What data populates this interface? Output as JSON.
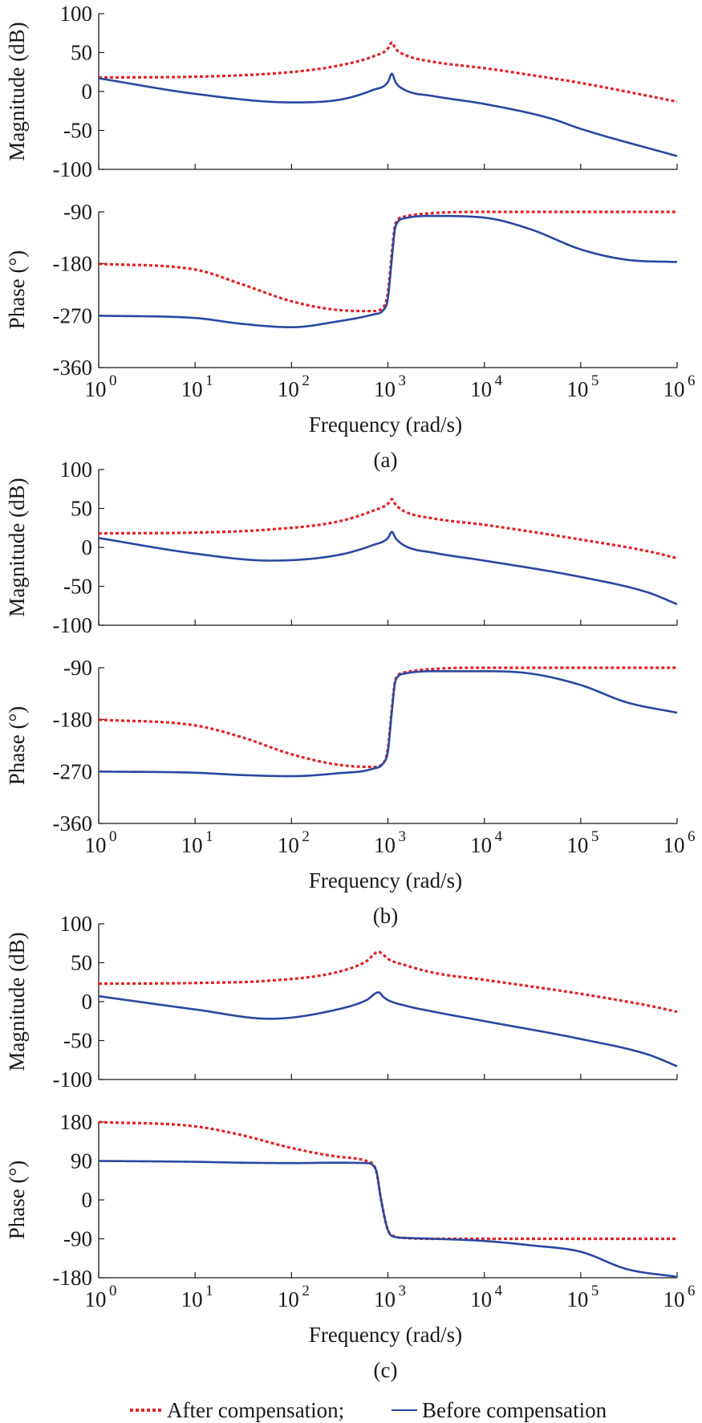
{
  "chart_data": [
    {
      "panel": "(a)",
      "caption": "(a)",
      "xlabel": "Frequency (rad/s)",
      "x_scale": "log",
      "x_ticks": [
        "10^0",
        "10^1",
        "10^2",
        "10^3",
        "10^4",
        "10^5",
        "10^6"
      ],
      "subplots": [
        {
          "type": "line",
          "ylabel": "Magnitude (dB)",
          "ylim": [
            -100,
            100
          ],
          "yticks": [
            "100",
            "50",
            "0",
            "-50",
            "-100"
          ],
          "grid": false,
          "x": [
            1,
            10,
            100,
            300,
            700,
            1000,
            1100,
            1200,
            1500,
            3000,
            10000,
            50000,
            100000,
            1000000
          ],
          "series": [
            {
              "name": "After compensation",
              "style": "dotted",
              "color": "#e0242a",
              "values": [
                18,
                19,
                25,
                33,
                45,
                55,
                63,
                55,
                47,
                38,
                30,
                17,
                11,
                -13
              ]
            },
            {
              "name": "Before compensation",
              "style": "solid",
              "color": "#2b479f",
              "values": [
                17,
                -3,
                -14,
                -11,
                2,
                12,
                23,
                12,
                2,
                -6,
                -16,
                -35,
                -48,
                -83
              ]
            }
          ]
        },
        {
          "type": "line",
          "ylabel": "Phase (°)",
          "ylim": [
            -360,
            -90
          ],
          "yticks": [
            "-90",
            "-180",
            "-270",
            "-360"
          ],
          "grid": false,
          "x": [
            1,
            10,
            30,
            100,
            300,
            700,
            900,
            1000,
            1100,
            1200,
            1500,
            3000,
            10000,
            30000,
            100000,
            300000,
            1000000
          ],
          "series": [
            {
              "name": "After compensation",
              "style": "dotted",
              "color": "#e0242a",
              "values": [
                -180,
                -190,
                -215,
                -245,
                -260,
                -262,
                -255,
                -230,
                -160,
                -110,
                -98,
                -92,
                -90,
                -90,
                -90,
                -90,
                -90
              ]
            },
            {
              "name": "Before compensation",
              "style": "solid",
              "color": "#2b479f",
              "values": [
                -270,
                -274,
                -284,
                -290,
                -280,
                -268,
                -260,
                -240,
                -170,
                -115,
                -101,
                -97,
                -100,
                -120,
                -155,
                -173,
                -177
              ]
            }
          ]
        }
      ]
    },
    {
      "panel": "(b)",
      "caption": "(b)",
      "xlabel": "Frequency (rad/s)",
      "x_scale": "log",
      "x_ticks": [
        "10^0",
        "10^1",
        "10^2",
        "10^3",
        "10^4",
        "10^5",
        "10^6"
      ],
      "subplots": [
        {
          "type": "line",
          "ylabel": "Magnitude (dB)",
          "ylim": [
            -100,
            100
          ],
          "yticks": [
            "100",
            "50",
            "0",
            "-50",
            "-100"
          ],
          "grid": false,
          "x": [
            1,
            10,
            60,
            300,
            700,
            1000,
            1100,
            1200,
            1500,
            3000,
            10000,
            100000,
            500000,
            1000000
          ],
          "series": [
            {
              "name": "After compensation",
              "style": "dotted",
              "color": "#e0242a",
              "values": [
                18,
                19,
                23,
                33,
                47,
                56,
                62,
                55,
                46,
                37,
                29,
                10,
                -5,
                -14
              ]
            },
            {
              "name": "Before compensation",
              "style": "solid",
              "color": "#2b479f",
              "values": [
                12,
                -8,
                -17,
                -10,
                3,
                12,
                20,
                12,
                2,
                -7,
                -17,
                -38,
                -58,
                -73
              ]
            }
          ]
        },
        {
          "type": "line",
          "ylabel": "Phase (°)",
          "ylim": [
            -360,
            -90
          ],
          "yticks": [
            "-90",
            "-180",
            "-270",
            "-360"
          ],
          "grid": false,
          "x": [
            1,
            10,
            30,
            100,
            300,
            700,
            900,
            1000,
            1100,
            1200,
            1500,
            3000,
            10000,
            30000,
            100000,
            300000,
            1000000
          ],
          "series": [
            {
              "name": "After compensation",
              "style": "dotted",
              "color": "#e0242a",
              "values": [
                -180,
                -190,
                -210,
                -240,
                -258,
                -262,
                -255,
                -230,
                -160,
                -110,
                -98,
                -92,
                -90,
                -90,
                -90,
                -90,
                -90
              ]
            },
            {
              "name": "Before compensation",
              "style": "solid",
              "color": "#2b479f",
              "values": [
                -270,
                -272,
                -276,
                -278,
                -273,
                -265,
                -255,
                -235,
                -165,
                -112,
                -100,
                -96,
                -96,
                -100,
                -120,
                -150,
                -168
              ]
            }
          ]
        }
      ]
    },
    {
      "panel": "(c)",
      "caption": "(c)",
      "xlabel": "Frequency (rad/s)",
      "x_scale": "log",
      "x_ticks": [
        "10^0",
        "10^1",
        "10^2",
        "10^3",
        "10^4",
        "10^5",
        "10^6"
      ],
      "subplots": [
        {
          "type": "line",
          "ylabel": "Magnitude (dB)",
          "ylim": [
            -100,
            100
          ],
          "yticks": [
            "100",
            "50",
            "0",
            "-50",
            "-100"
          ],
          "grid": false,
          "x": [
            1,
            10,
            60,
            300,
            600,
            800,
            900,
            1000,
            1500,
            3000,
            10000,
            100000,
            500000,
            1000000
          ],
          "series": [
            {
              "name": "After compensation",
              "style": "dotted",
              "color": "#e0242a",
              "values": [
                23,
                24,
                27,
                38,
                52,
                64,
                60,
                55,
                47,
                37,
                28,
                10,
                -5,
                -13
              ]
            },
            {
              "name": "Before compensation",
              "style": "solid",
              "color": "#2b479f",
              "values": [
                7,
                -10,
                -22,
                -10,
                2,
                12,
                6,
                2,
                -5,
                -13,
                -25,
                -48,
                -68,
                -83
              ]
            }
          ]
        },
        {
          "type": "line",
          "ylabel": "Phase (°)",
          "ylim": [
            -180,
            180
          ],
          "yticks": [
            "180",
            "90",
            "0",
            "-90",
            "-180"
          ],
          "grid": false,
          "x": [
            1,
            10,
            30,
            100,
            300,
            600,
            750,
            850,
            1000,
            1200,
            1500,
            3000,
            10000,
            30000,
            100000,
            300000,
            1000000
          ],
          "series": [
            {
              "name": "After compensation",
              "style": "dotted",
              "color": "#e0242a",
              "values": [
                180,
                170,
                150,
                120,
                100,
                90,
                70,
                0,
                -70,
                -85,
                -88,
                -90,
                -90,
                -90,
                -90,
                -90,
                -90
              ]
            },
            {
              "name": "Before compensation",
              "style": "solid",
              "color": "#2b479f",
              "values": [
                90,
                88,
                86,
                85,
                86,
                85,
                70,
                0,
                -70,
                -86,
                -88,
                -90,
                -95,
                -105,
                -120,
                -160,
                -178
              ]
            }
          ]
        }
      ]
    }
  ],
  "legend": {
    "placement": "bottom",
    "items": [
      {
        "label": "After compensation;",
        "style": "dotted",
        "color": "#e0242a"
      },
      {
        "label": "Before compensation",
        "style": "solid",
        "color": "#2b479f"
      }
    ]
  }
}
